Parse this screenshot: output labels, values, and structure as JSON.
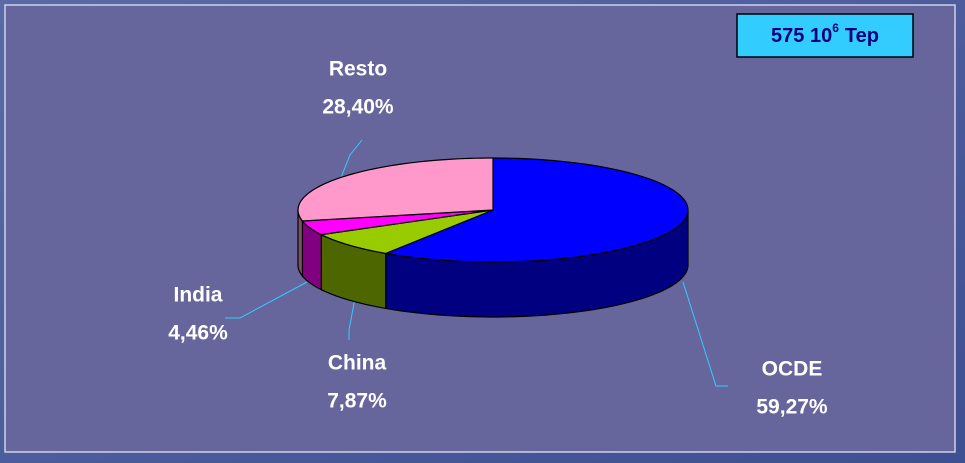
{
  "chart_data": {
    "type": "pie",
    "annotation": {
      "base": "575 10",
      "sup": "6",
      "unit": "Tep"
    },
    "categories": [
      "OCDE",
      "China",
      "India",
      "Resto"
    ],
    "values": [
      59.27,
      7.87,
      4.46,
      28.4
    ],
    "value_labels": [
      "59,27%",
      "7,87%",
      "4,46%",
      "28,40%"
    ],
    "colors": [
      "#0000ff",
      "#99cc00",
      "#ff00ff",
      "#ff99cc"
    ],
    "side_colors": [
      "#000080",
      "#4d6600",
      "#800080",
      "#804d66"
    ]
  }
}
